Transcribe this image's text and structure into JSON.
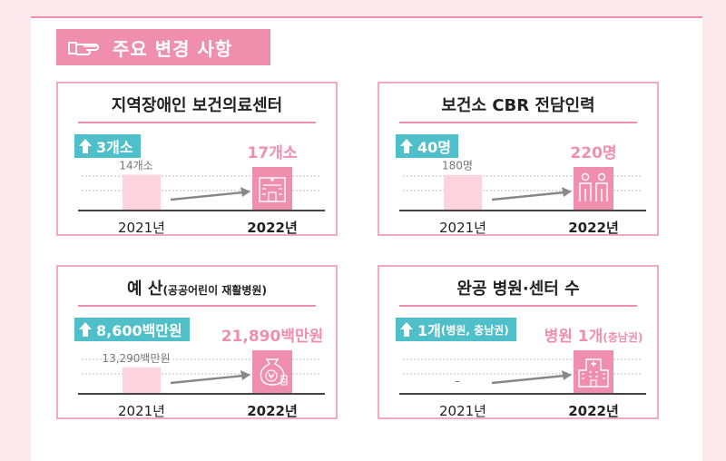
{
  "header": {
    "title": "주요 변경 사항",
    "icon": "pointing-hand-icon"
  },
  "colors": {
    "accent": "#f08fad",
    "badge": "#4fbfc9",
    "bar_prev": "#fcd3df",
    "bar_curr": "#f08fad",
    "arrow": "#888888"
  },
  "chart_data": [
    {
      "type": "bar",
      "title": "지역장애인 보건의료센터",
      "title_sub": "",
      "badge": {
        "main": "3개소",
        "sub": ""
      },
      "categories": [
        "2021년",
        "2022년"
      ],
      "values": [
        14,
        17
      ],
      "value_labels": [
        "14개소",
        "17개소"
      ],
      "ylim": [
        0,
        17
      ],
      "icon": "hospital-building-icon"
    },
    {
      "type": "bar",
      "title": "보건소 CBR 전담인력",
      "title_sub": "",
      "badge": {
        "main": "40명",
        "sub": ""
      },
      "categories": [
        "2021년",
        "2022년"
      ],
      "values": [
        180,
        220
      ],
      "value_labels": [
        "180명",
        "220명"
      ],
      "ylim": [
        0,
        220
      ],
      "icon": "people-icon"
    },
    {
      "type": "bar",
      "title": "예 산",
      "title_sub": "(공공어린이 재활병원)",
      "badge": {
        "main": "8,600백만원",
        "sub": ""
      },
      "categories": [
        "2021년",
        "2022년"
      ],
      "values": [
        13290,
        21890
      ],
      "value_labels": [
        "13,290백만원",
        "21,890백만원"
      ],
      "ylim": [
        0,
        21890
      ],
      "icon": "money-bag-icon"
    },
    {
      "type": "bar",
      "title": "완공 병원·센터 수",
      "title_sub": "",
      "badge": {
        "main": "1개",
        "sub": "(병원, 충남권)"
      },
      "categories": [
        "2021년",
        "2022년"
      ],
      "values": [
        0,
        1
      ],
      "value_labels": [
        "–",
        "병원 1개"
      ],
      "value_label_subs": [
        "",
        "(충남권)"
      ],
      "ylim": [
        0,
        1
      ],
      "icon": "hospital-icon"
    }
  ]
}
